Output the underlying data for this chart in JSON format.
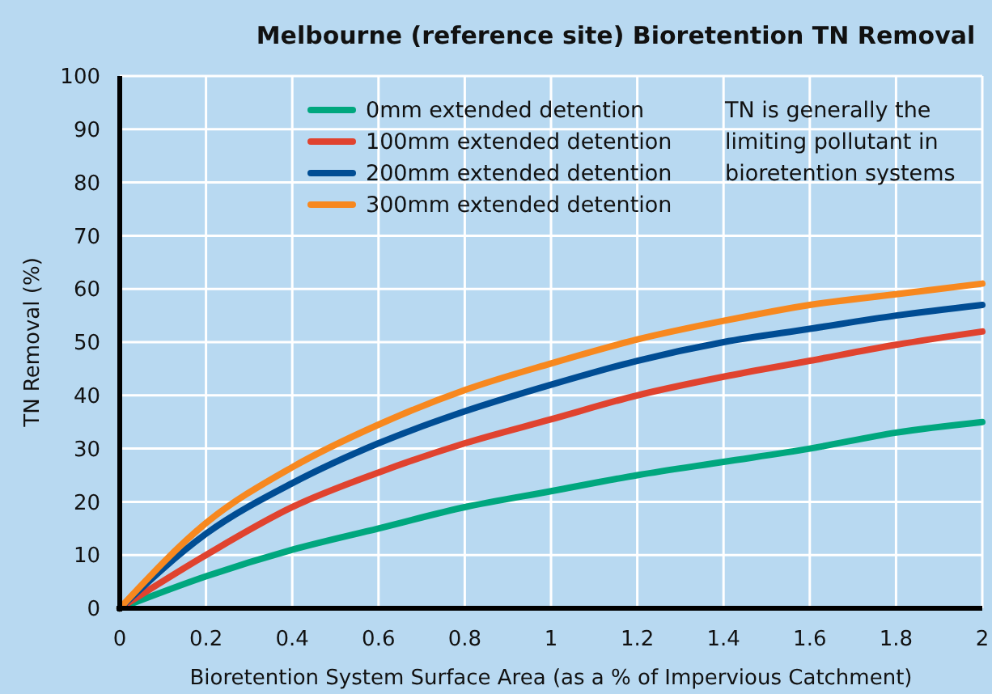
{
  "chart_data": {
    "type": "line",
    "title": "Melbourne (reference site) Bioretention TN Removal",
    "xlabel": "Bioretention System Surface Area (as a % of Impervious Catchment)",
    "ylabel": "TN Removal (%)",
    "x": [
      0,
      0.2,
      0.4,
      0.6,
      0.8,
      1,
      1.2,
      1.4,
      1.6,
      1.8,
      2
    ],
    "series": [
      {
        "name": "0mm extended detention",
        "color": "#00a77e",
        "values": [
          0,
          6,
          11,
          15,
          19,
          22,
          25,
          27.5,
          30,
          33,
          35
        ]
      },
      {
        "name": "100mm extended detention",
        "color": "#e0432f",
        "values": [
          0,
          10,
          19,
          25.5,
          31,
          35.5,
          40,
          43.5,
          46.5,
          49.5,
          52
        ]
      },
      {
        "name": "200mm extended detention",
        "color": "#004d94",
        "values": [
          0,
          14,
          23.5,
          31,
          37,
          42,
          46.5,
          50,
          52.5,
          55,
          57
        ]
      },
      {
        "name": "300mm extended detention",
        "color": "#f7881f",
        "values": [
          0,
          16,
          26.5,
          34.5,
          41,
          46,
          50.5,
          54,
          57,
          59,
          61
        ]
      }
    ],
    "xlim": [
      0,
      2
    ],
    "xticks": [
      0,
      0.2,
      0.4,
      0.6,
      0.8,
      1,
      1.2,
      1.4,
      1.6,
      1.8,
      2
    ],
    "ylim": [
      0,
      100
    ],
    "yticks": [
      0,
      10,
      20,
      30,
      40,
      50,
      60,
      70,
      80,
      90,
      100
    ],
    "grid": true,
    "legend": "top",
    "marker": "none",
    "line_style": "solid",
    "annotations": [
      "TN is generally the limiting pollutant in bioretention systems"
    ]
  }
}
